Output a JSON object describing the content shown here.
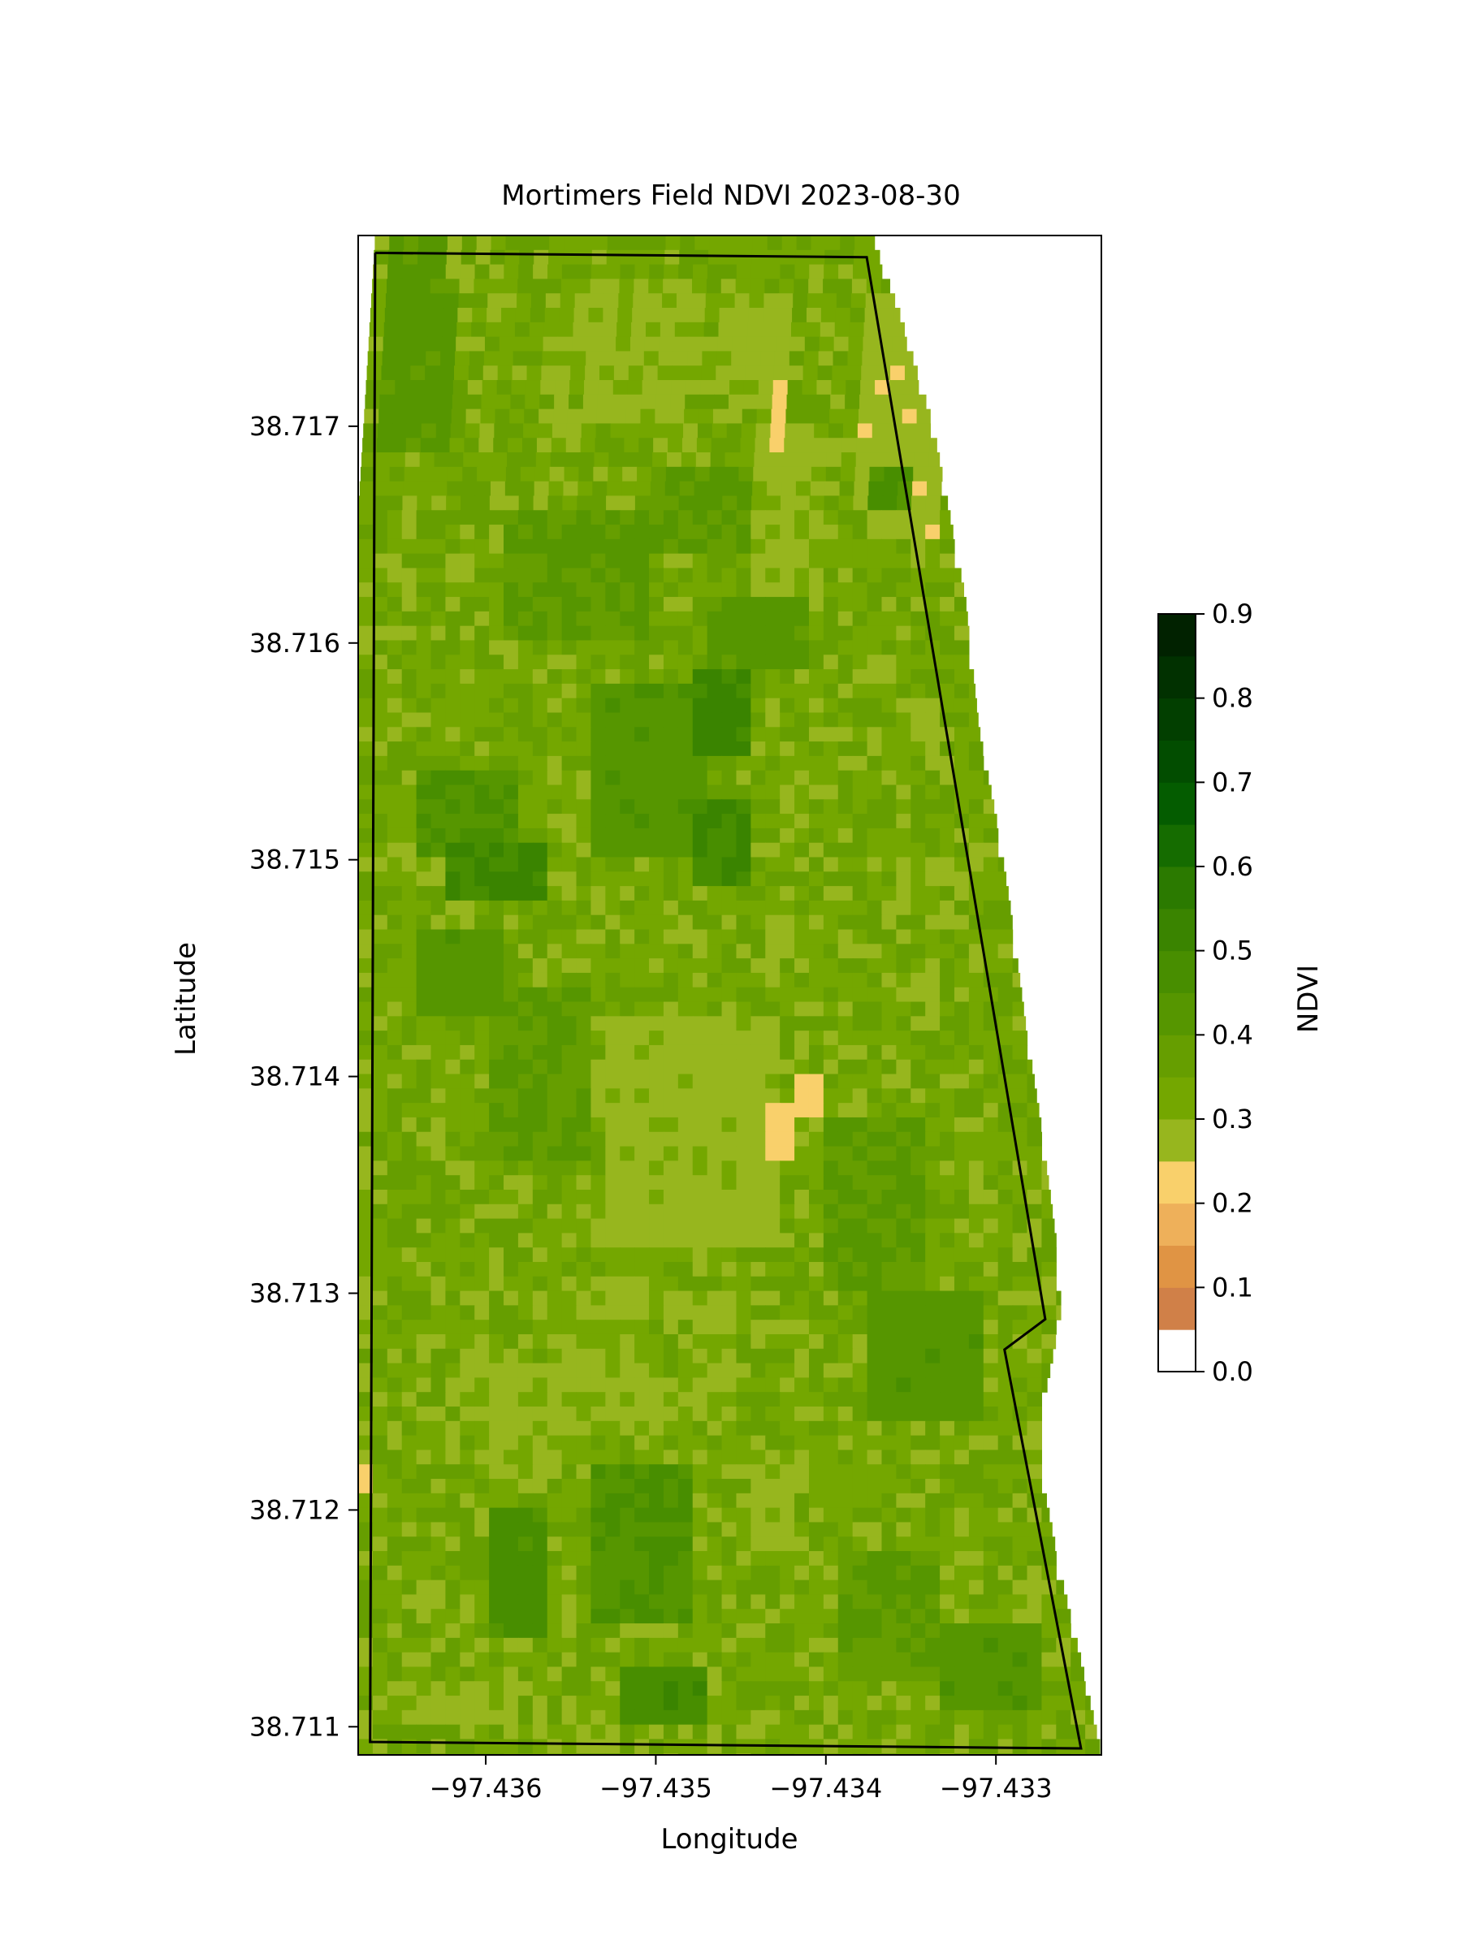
{
  "chart_data": {
    "type": "heatmap",
    "title": "Mortimers Field NDVI 2023-08-30",
    "xlabel": "Longitude",
    "ylabel": "Latitude",
    "xlim": [
      -97.43675,
      -97.43238
    ],
    "ylim": [
      38.71087,
      38.71788
    ],
    "xticks": [
      {
        "value": -97.436,
        "label": "−97.436"
      },
      {
        "value": -97.435,
        "label": "−97.435"
      },
      {
        "value": -97.434,
        "label": "−97.434"
      },
      {
        "value": -97.433,
        "label": "−97.433"
      }
    ],
    "yticks": [
      {
        "value": 38.711,
        "label": "38.711"
      },
      {
        "value": 38.712,
        "label": "38.712"
      },
      {
        "value": 38.713,
        "label": "38.713"
      },
      {
        "value": 38.714,
        "label": "38.714"
      },
      {
        "value": 38.715,
        "label": "38.715"
      },
      {
        "value": 38.716,
        "label": "38.716"
      },
      {
        "value": 38.717,
        "label": "38.717"
      }
    ],
    "colorbar": {
      "label": "NDVI",
      "range": [
        0.0,
        0.9
      ],
      "ticks": [
        "0.0",
        "0.1",
        "0.2",
        "0.3",
        "0.4",
        "0.5",
        "0.6",
        "0.7",
        "0.8",
        "0.9"
      ],
      "bins": [
        {
          "from": 0.0,
          "to": 0.05,
          "color": "#ffffff"
        },
        {
          "from": 0.05,
          "to": 0.1,
          "color": "#d08048"
        },
        {
          "from": 0.1,
          "to": 0.15,
          "color": "#e09444"
        },
        {
          "from": 0.15,
          "to": 0.2,
          "color": "#eeb05a"
        },
        {
          "from": 0.2,
          "to": 0.25,
          "color": "#f9d06b"
        },
        {
          "from": 0.25,
          "to": 0.3,
          "color": "#97b61e"
        },
        {
          "from": 0.3,
          "to": 0.35,
          "color": "#74a700"
        },
        {
          "from": 0.35,
          "to": 0.4,
          "color": "#669e00"
        },
        {
          "from": 0.4,
          "to": 0.45,
          "color": "#569600"
        },
        {
          "from": 0.45,
          "to": 0.5,
          "color": "#488e00"
        },
        {
          "from": 0.5,
          "to": 0.55,
          "color": "#3a8400"
        },
        {
          "from": 0.55,
          "to": 0.6,
          "color": "#2b7a00"
        },
        {
          "from": 0.6,
          "to": 0.65,
          "color": "#156c00"
        },
        {
          "from": 0.65,
          "to": 0.7,
          "color": "#045c00"
        },
        {
          "from": 0.7,
          "to": 0.75,
          "color": "#024d00"
        },
        {
          "from": 0.75,
          "to": 0.8,
          "color": "#023f00"
        },
        {
          "from": 0.8,
          "to": 0.85,
          "color": "#013100"
        },
        {
          "from": 0.85,
          "to": 0.9,
          "color": "#012200"
        }
      ]
    },
    "field_boundary": [
      [
        -97.43665,
        38.7178
      ],
      [
        -97.43376,
        38.71778
      ],
      [
        -97.43271,
        38.71288
      ],
      [
        -97.43295,
        38.71274
      ],
      [
        -97.4325,
        38.7109
      ],
      [
        -97.43668,
        38.71093
      ],
      [
        -97.43665,
        38.7178
      ]
    ],
    "grid": {
      "cell_lon": 8.55e-05,
      "cell_lat": 6.67e-05,
      "west_edge": [
        [
          38.71788,
          -97.43665
        ],
        [
          38.7166,
          -97.43675
        ],
        [
          38.711,
          -97.43675
        ],
        [
          38.71087,
          -97.43675
        ]
      ],
      "east_edge": [
        [
          38.71788,
          -97.43373
        ],
        [
          38.7175,
          -97.43356
        ],
        [
          38.717,
          -97.43337
        ],
        [
          38.7162,
          -97.43318
        ],
        [
          38.7156,
          -97.4331
        ],
        [
          38.71515,
          -97.43299
        ],
        [
          38.7148,
          -97.43292
        ],
        [
          38.7142,
          -97.43282
        ],
        [
          38.7138,
          -97.43274
        ],
        [
          38.7132,
          -97.43264
        ],
        [
          38.713,
          -97.43262
        ],
        [
          38.7129,
          -97.43262
        ],
        [
          38.7125,
          -97.43272
        ],
        [
          38.71215,
          -97.43273
        ],
        [
          38.7117,
          -97.43262
        ],
        [
          38.7113,
          -97.4325
        ],
        [
          38.71087,
          -97.43238
        ]
      ],
      "base_ndvi": 0.33,
      "zones": [
        {
          "lon": [
            -97.4366,
            -97.4362
          ],
          "lat": [
            38.7169,
            38.71788
          ],
          "ndvi": 0.42
        },
        {
          "lon": [
            -97.43545,
            -97.4348
          ],
          "lat": [
            38.717,
            38.7177
          ],
          "ndvi": 0.29
        },
        {
          "lon": [
            -97.43455,
            -97.4342
          ],
          "lat": [
            38.7172,
            38.7176
          ],
          "ndvi": 0.28
        },
        {
          "lon": [
            -97.4344,
            -97.434
          ],
          "lat": [
            38.716,
            38.717
          ],
          "ndvi": 0.29
        },
        {
          "lon": [
            -97.43435,
            -97.43422
          ],
          "lat": [
            38.7169,
            38.71718
          ],
          "ndvi": 0.22
        },
        {
          "lon": [
            -97.4338,
            -97.4333
          ],
          "lat": [
            38.7165,
            38.7176
          ],
          "ndvi": 0.27
        },
        {
          "lon": [
            -97.4359,
            -97.435
          ],
          "lat": [
            38.716,
            38.7166
          ],
          "ndvi": 0.4
        },
        {
          "lon": [
            -97.435,
            -97.4344
          ],
          "lat": [
            38.7164,
            38.7168
          ],
          "ndvi": 0.4
        },
        {
          "lon": [
            -97.43375,
            -97.43348
          ],
          "lat": [
            38.7166,
            38.7168
          ],
          "ndvi": 0.46
        },
        {
          "lon": [
            -97.4347,
            -97.4341
          ],
          "lat": [
            38.7159,
            38.7162
          ],
          "ndvi": 0.42
        },
        {
          "lon": [
            -97.4354,
            -97.4347
          ],
          "lat": [
            38.715,
            38.7158
          ],
          "ndvi": 0.43
        },
        {
          "lon": [
            -97.4348,
            -97.4344
          ],
          "lat": [
            38.7155,
            38.7159
          ],
          "ndvi": 0.52
        },
        {
          "lon": [
            -97.4348,
            -97.4344
          ],
          "lat": [
            38.7149,
            38.7153
          ],
          "ndvi": 0.5
        },
        {
          "lon": [
            -97.4364,
            -97.4358
          ],
          "lat": [
            38.715,
            38.7154
          ],
          "ndvi": 0.45
        },
        {
          "lon": [
            -97.43625,
            -97.4356
          ],
          "lat": [
            38.7148,
            38.7151
          ],
          "ndvi": 0.5
        },
        {
          "lon": [
            -97.4364,
            -97.4359
          ],
          "lat": [
            38.7143,
            38.7147
          ],
          "ndvi": 0.43
        },
        {
          "lon": [
            -97.4358,
            -97.4355
          ],
          "lat": [
            38.7139,
            38.7142
          ],
          "ndvi": 0.5
        },
        {
          "lon": [
            -97.436,
            -97.4354
          ],
          "lat": [
            38.7136,
            38.7144
          ],
          "ndvi": 0.4
        },
        {
          "lon": [
            -97.4353,
            -97.4343
          ],
          "lat": [
            38.7132,
            38.7143
          ],
          "ndvi": 0.28
        },
        {
          "lon": [
            -97.4342,
            -97.43405
          ],
          "lat": [
            38.7138,
            38.714
          ],
          "ndvi": 0.22
        },
        {
          "lon": [
            -97.43435,
            -97.43415
          ],
          "lat": [
            38.7136,
            38.7139
          ],
          "ndvi": 0.22
        },
        {
          "lon": [
            -97.434,
            -97.4334
          ],
          "lat": [
            38.713,
            38.7138
          ],
          "ndvi": 0.4
        },
        {
          "lon": [
            -97.4338,
            -97.4331
          ],
          "lat": [
            38.7124,
            38.713
          ],
          "ndvi": 0.43
        },
        {
          "lon": [
            -97.4356,
            -97.435
          ],
          "lat": [
            38.7124,
            38.7131
          ],
          "ndvi": 0.29
        },
        {
          "lon": [
            -97.436,
            -97.4356
          ],
          "lat": [
            38.7121,
            38.7127
          ],
          "ndvi": 0.29
        },
        {
          "lon": [
            -97.4348,
            -97.4345
          ],
          "lat": [
            38.7124,
            38.713
          ],
          "ndvi": 0.29
        },
        {
          "lon": [
            -97.4354,
            -97.4348
          ],
          "lat": [
            38.7115,
            38.7122
          ],
          "ndvi": 0.45
        },
        {
          "lon": [
            -97.436,
            -97.4356
          ],
          "lat": [
            38.7114,
            38.712
          ],
          "ndvi": 0.47
        },
        {
          "lon": [
            -97.4344,
            -97.4342
          ],
          "lat": [
            38.7118,
            38.7122
          ],
          "ndvi": 0.28
        },
        {
          "lon": [
            -97.4339,
            -97.4333
          ],
          "lat": [
            38.7112,
            38.7118
          ],
          "ndvi": 0.4
        },
        {
          "lon": [
            -97.4333,
            -97.4327
          ],
          "lat": [
            38.7111,
            38.7115
          ],
          "ndvi": 0.43
        },
        {
          "lon": [
            -97.4352,
            -97.4347
          ],
          "lat": [
            38.711,
            38.7113
          ],
          "ndvi": 0.48
        },
        {
          "lon": [
            -97.4364,
            -97.4359
          ],
          "lat": [
            38.711,
            38.7112
          ],
          "ndvi": 0.29
        },
        {
          "lon": [
            -97.43675,
            -97.43665
          ],
          "lat": [
            38.7121,
            38.7122
          ],
          "ndvi": 0.22
        }
      ]
    }
  }
}
